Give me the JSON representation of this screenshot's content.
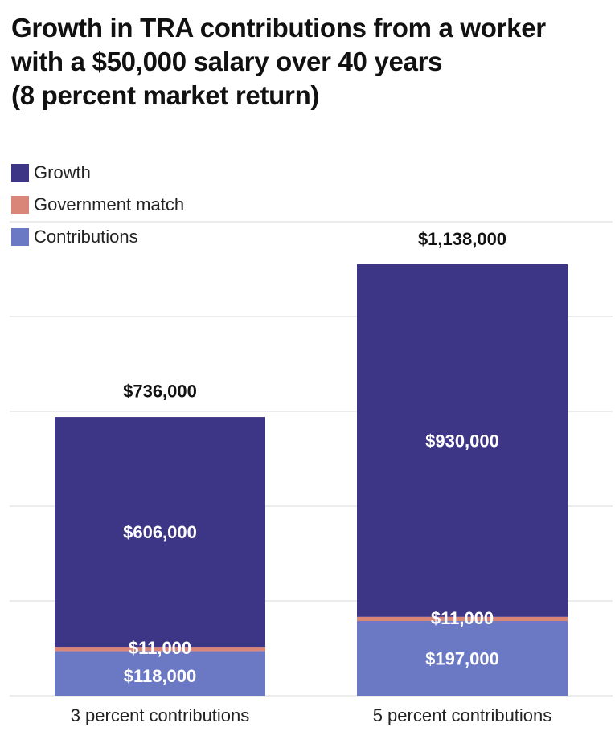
{
  "title_lines": [
    "Growth in TRA contributions from a worker",
    "with a $50,000 salary over 40 years",
    "(8 percent market return)"
  ],
  "legend": [
    {
      "label": "Growth",
      "color": "#3d3585"
    },
    {
      "label": "Government match",
      "color": "#d98577"
    },
    {
      "label": "Contributions",
      "color": "#6b78c4"
    }
  ],
  "chart_data": {
    "type": "bar",
    "stacked": true,
    "title": "Growth in TRA contributions from a worker with a $50,000 salary over 40 years (8 percent market return)",
    "categories": [
      "3 percent contributions",
      "5 percent contributions"
    ],
    "series": [
      {
        "name": "Contributions",
        "values": [
          118000,
          197000
        ],
        "labels": [
          "$118,000",
          "$197,000"
        ],
        "color": "#6b78c4"
      },
      {
        "name": "Government match",
        "values": [
          11000,
          11000
        ],
        "labels": [
          "$11,000",
          "$11,000"
        ],
        "color": "#d98577"
      },
      {
        "name": "Growth",
        "values": [
          606000,
          930000
        ],
        "labels": [
          "$606,000",
          "$930,000"
        ],
        "color": "#3d3585"
      }
    ],
    "totals": [
      736000,
      1138000
    ],
    "total_labels": [
      "$736,000",
      "$1,138,000"
    ],
    "ylim": [
      0,
      1250000
    ],
    "grid_step": 250000,
    "grid": true,
    "legend_position": "top-left",
    "xlabel": "",
    "ylabel": ""
  }
}
